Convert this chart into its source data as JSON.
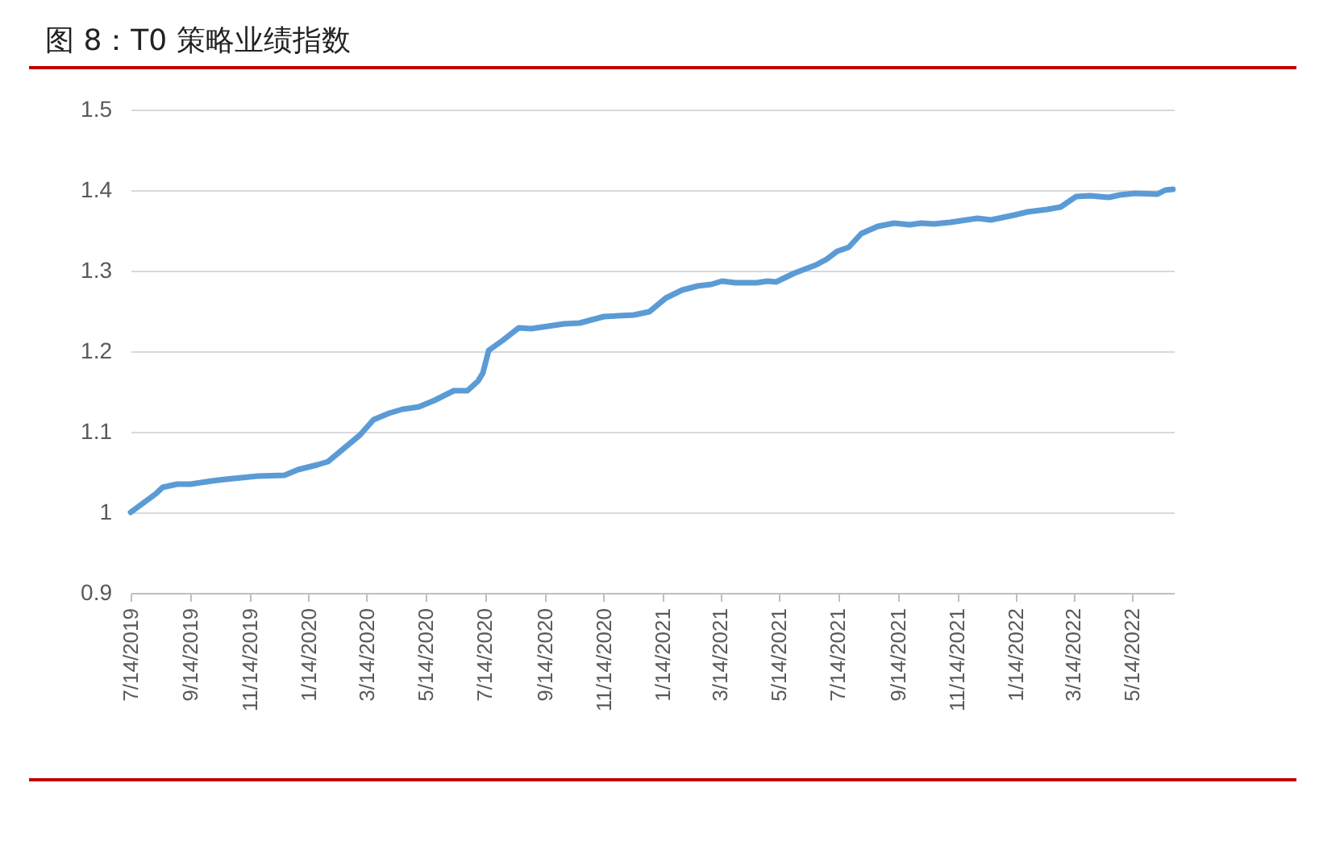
{
  "chart_data": {
    "type": "line",
    "title": "图 8：T0 策略业绩指数",
    "x": [
      "2019-07-14",
      "2019-08-09",
      "2019-08-16",
      "2019-08-31",
      "2019-09-14",
      "2019-10-06",
      "2019-10-20",
      "2019-11-22",
      "2019-12-20",
      "2020-01-03",
      "2020-01-23",
      "2020-02-03",
      "2020-02-19",
      "2020-03-07",
      "2020-03-21",
      "2020-04-06",
      "2020-04-20",
      "2020-05-07",
      "2020-05-23",
      "2020-06-12",
      "2020-06-26",
      "2020-07-07",
      "2020-07-12",
      "2020-07-18",
      "2020-08-01",
      "2020-08-18",
      "2020-08-31",
      "2020-10-04",
      "2020-10-20",
      "2020-11-14",
      "2020-12-15",
      "2020-12-31",
      "2021-01-17",
      "2021-02-03",
      "2021-02-19",
      "2021-03-05",
      "2021-03-16",
      "2021-03-30",
      "2021-04-21",
      "2021-05-02",
      "2021-05-11",
      "2021-05-30",
      "2021-06-21",
      "2021-07-02",
      "2021-07-13",
      "2021-07-25",
      "2021-08-07",
      "2021-08-24",
      "2021-09-10",
      "2021-09-26",
      "2021-10-08",
      "2021-10-21",
      "2021-11-07",
      "2021-12-05",
      "2021-12-19",
      "2022-01-12",
      "2022-01-26",
      "2022-02-15",
      "2022-03-01",
      "2022-03-17",
      "2022-03-31",
      "2022-04-20",
      "2022-05-01",
      "2022-05-17",
      "2022-06-09",
      "2022-06-17",
      "2022-06-25"
    ],
    "series": [
      {
        "color": "#5b9bd5",
        "values": [
          1.0,
          1.023,
          1.031,
          1.035,
          1.035,
          1.039,
          1.041,
          1.045,
          1.046,
          1.053,
          1.059,
          1.063,
          1.079,
          1.096,
          1.115,
          1.123,
          1.128,
          1.131,
          1.139,
          1.151,
          1.151,
          1.163,
          1.173,
          1.201,
          1.213,
          1.229,
          1.228,
          1.234,
          1.235,
          1.243,
          1.245,
          1.249,
          1.266,
          1.276,
          1.281,
          1.283,
          1.287,
          1.285,
          1.285,
          1.287,
          1.286,
          1.297,
          1.307,
          1.314,
          1.324,
          1.329,
          1.346,
          1.355,
          1.359,
          1.357,
          1.359,
          1.358,
          1.36,
          1.365,
          1.363,
          1.369,
          1.373,
          1.376,
          1.379,
          1.392,
          1.393,
          1.391,
          1.394,
          1.396,
          1.395,
          1.4,
          1.401
        ]
      }
    ],
    "xlim": [
      "2019-07-14",
      "2022-06-26"
    ],
    "xticks": [
      {
        "value": "2019-07-14",
        "label": "7/14/2019"
      },
      {
        "value": "2019-09-14",
        "label": "9/14/2019"
      },
      {
        "value": "2019-11-14",
        "label": "11/14/2019"
      },
      {
        "value": "2020-01-14",
        "label": "1/14/2020"
      },
      {
        "value": "2020-03-14",
        "label": "3/14/2020"
      },
      {
        "value": "2020-05-14",
        "label": "5/14/2020"
      },
      {
        "value": "2020-07-14",
        "label": "7/14/2020"
      },
      {
        "value": "2020-09-14",
        "label": "9/14/2020"
      },
      {
        "value": "2020-11-14",
        "label": "11/14/2020"
      },
      {
        "value": "2021-01-14",
        "label": "1/14/2021"
      },
      {
        "value": "2021-03-14",
        "label": "3/14/2021"
      },
      {
        "value": "2021-05-14",
        "label": "5/14/2021"
      },
      {
        "value": "2021-07-14",
        "label": "7/14/2021"
      },
      {
        "value": "2021-09-14",
        "label": "9/14/2021"
      },
      {
        "value": "2021-11-14",
        "label": "11/14/2021"
      },
      {
        "value": "2022-01-14",
        "label": "1/14/2022"
      },
      {
        "value": "2022-03-14",
        "label": "3/14/2022"
      },
      {
        "value": "2022-05-14",
        "label": "5/14/2022"
      }
    ],
    "ylim": [
      0.9,
      1.5
    ],
    "yticks": [
      0.9,
      1,
      1.1,
      1.2,
      1.3,
      1.4,
      1.5
    ],
    "grid": "y",
    "marker": "none",
    "line_style": "solid"
  }
}
